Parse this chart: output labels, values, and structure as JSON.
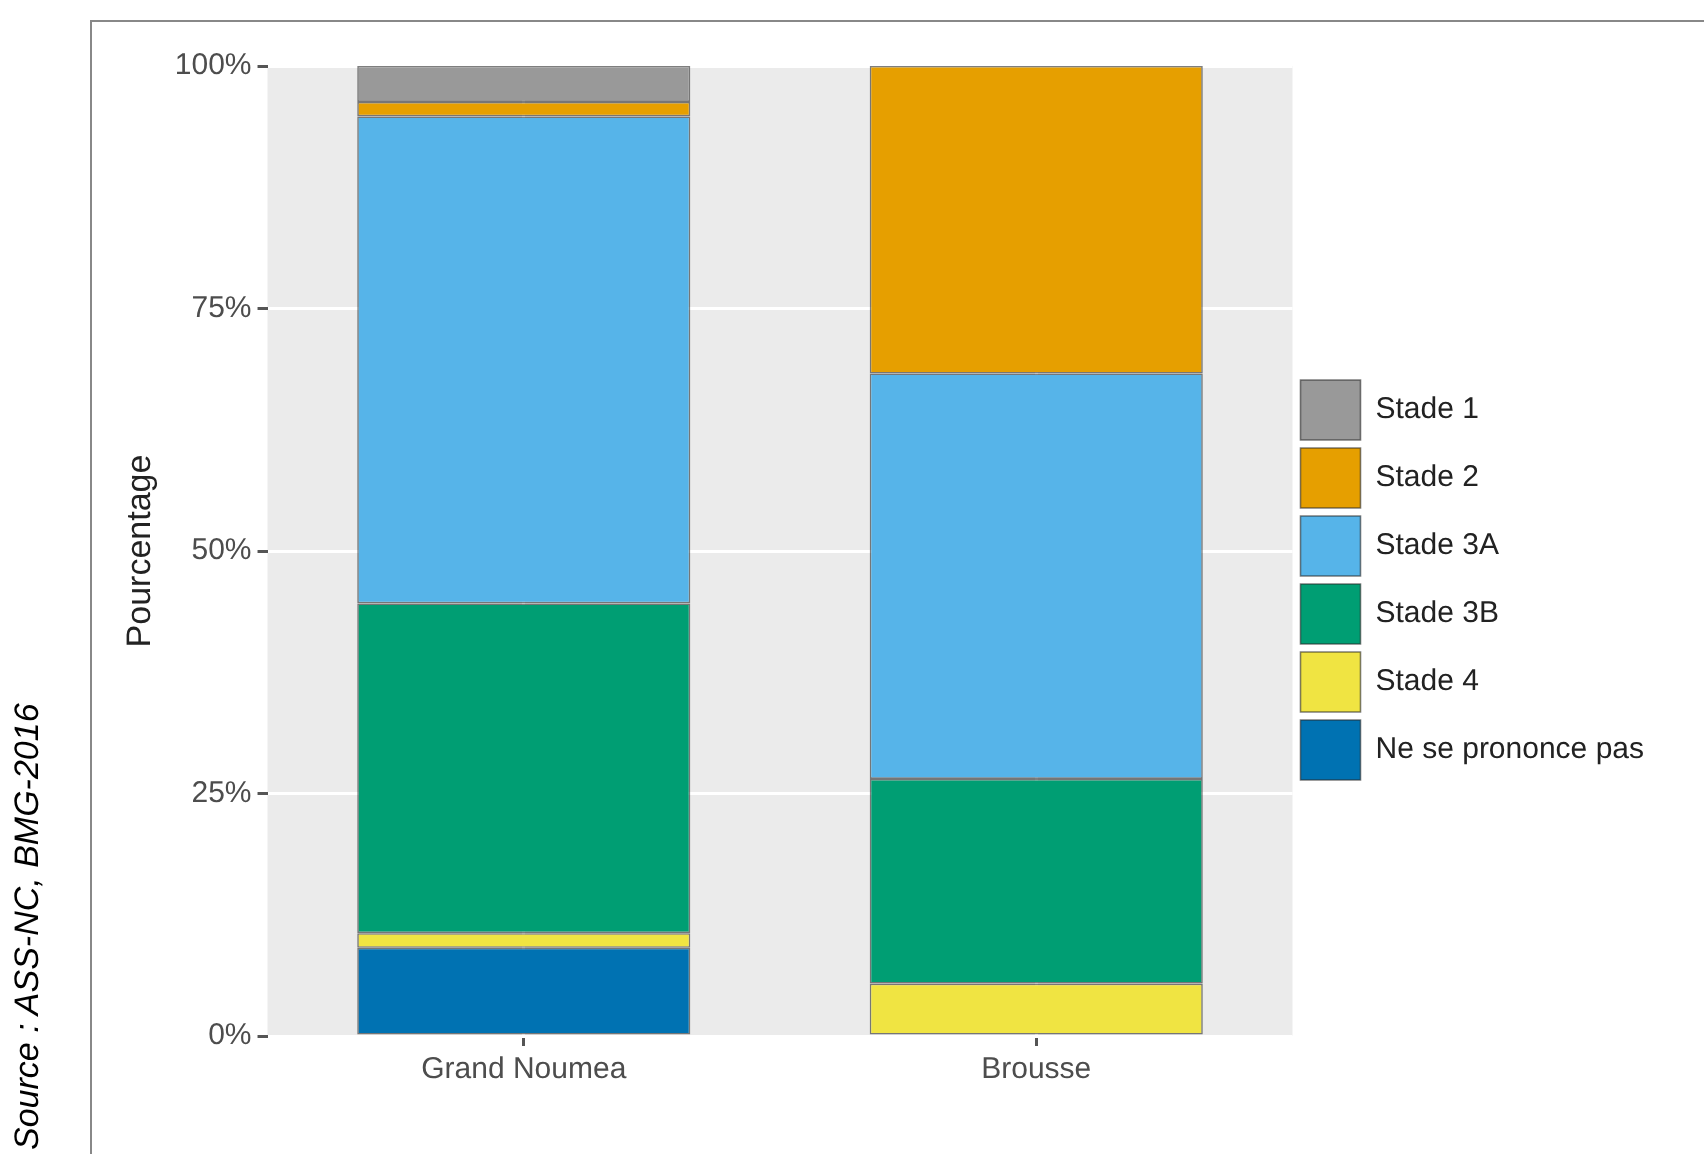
{
  "chart_data": {
    "type": "bar",
    "stacked": true,
    "ylabel": "Pourcentage",
    "categories": [
      "Grand Noumea",
      "Brousse"
    ],
    "series": [
      {
        "name": "Ne se prononce pas",
        "color": "#0072b2",
        "values": [
          9.1,
          0
        ]
      },
      {
        "name": "Stade 4",
        "color": "#f0e442",
        "values": [
          1.5,
          5.4
        ]
      },
      {
        "name": "Stade 3B",
        "color": "#009e73",
        "values": [
          34,
          21.1
        ]
      },
      {
        "name": "Stade 3A",
        "color": "#56b4e9",
        "values": [
          50.2,
          41.8
        ]
      },
      {
        "name": "Stade 2",
        "color": "#e69f00",
        "values": [
          1.5,
          31.7
        ]
      },
      {
        "name": "Stade 1",
        "color": "#999999",
        "values": [
          3.7,
          0
        ]
      }
    ],
    "ylim": [
      0,
      100
    ],
    "yticks": [
      {
        "value": 0,
        "label": "0%"
      },
      {
        "value": 25,
        "label": "25%"
      },
      {
        "value": 50,
        "label": "50%"
      },
      {
        "value": 75,
        "label": "75%"
      },
      {
        "value": 100,
        "label": "100%"
      }
    ],
    "grid": true,
    "legend": "right",
    "annotations": [
      "Source : ASS-NC, BMG-2016"
    ]
  }
}
